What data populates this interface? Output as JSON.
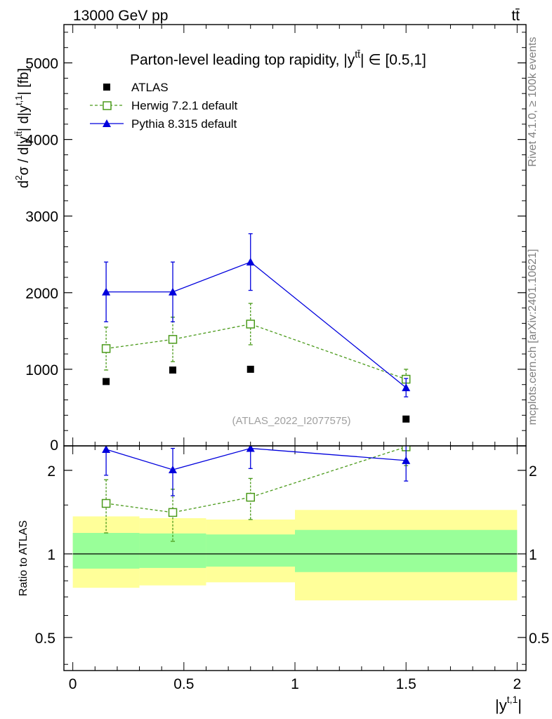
{
  "header": {
    "energy_label": "13000 GeV pp",
    "process_label": "tt̄"
  },
  "side_labels": {
    "rivet": "Rivet 4.1.0, ≥ 100k events",
    "mcplots": "mcplots.cern.ch [arXiv:2401.10621]"
  },
  "colors": {
    "atlas": "#000000",
    "herwig": "#4a9a1a",
    "pythia": "#0000dd",
    "band_inner": "#99ff99",
    "band_outer": "#ffff99"
  },
  "chart_data": [
    {
      "type": "scatter",
      "panel": "main",
      "title": "Parton-level leading top rapidity, |y^{tt̄}| ∈ [0.5,1]",
      "title_parts": {
        "prefix": "Parton-level leading top rapidity, |y",
        "sup": "tt̄",
        "suffix": "| ∈ [0.5,1]"
      },
      "ylabel": "d²σ / d|y^{tt̄}| d|y^{t,1}| [fb]",
      "ylabel_parts": {
        "a": "d",
        "a_sup": "2",
        "b": "σ / d|y",
        "b_sup": "tt̄",
        "c": "| d|y",
        "c_sup": "t,1",
        "d": "| [fb]"
      },
      "ylim": [
        0,
        5500
      ],
      "yticks": [
        0,
        1000,
        2000,
        3000,
        4000,
        5000
      ],
      "ytick_labels": [
        "0",
        "1000",
        "2000",
        "3000",
        "4000",
        "5000"
      ],
      "xlim": [
        -0.04,
        2.04
      ],
      "annotation": "(ATLAS_2022_I2077575)",
      "legend_position": "top-left",
      "series": [
        {
          "name": "ATLAS",
          "x": [
            0.15,
            0.45,
            0.8,
            1.5
          ],
          "y": [
            840,
            990,
            1000,
            350
          ],
          "err": [
            0,
            0,
            0,
            0
          ],
          "marker": "filled-square",
          "line": "none"
        },
        {
          "name": "Herwig 7.2.1 default",
          "x": [
            0.15,
            0.45,
            0.8,
            1.5
          ],
          "y": [
            1270,
            1390,
            1590,
            870
          ],
          "err": [
            280,
            290,
            270,
            130
          ],
          "marker": "open-square",
          "line": "dashed"
        },
        {
          "name": "Pythia 8.315 default",
          "x": [
            0.15,
            0.45,
            0.8,
            1.5
          ],
          "y": [
            2010,
            2010,
            2400,
            760
          ],
          "err": [
            390,
            390,
            370,
            120
          ],
          "marker": "filled-triangle",
          "line": "solid"
        }
      ]
    },
    {
      "type": "scatter",
      "panel": "ratio",
      "ylabel": "Ratio to ATLAS",
      "yscale": "log",
      "ylim": [
        0.38,
        2.45
      ],
      "yticks": [
        0.5,
        1,
        2
      ],
      "ytick_labels": [
        "0.5",
        "1",
        "2"
      ],
      "xlim": [
        -0.04,
        2.04
      ],
      "xticks": [
        0,
        0.5,
        1,
        1.5,
        2
      ],
      "xtick_labels": [
        "0",
        "0.5",
        "1",
        "1.5",
        "2"
      ],
      "xlabel": "|y^{t,1}|",
      "xlabel_parts": {
        "a": "|y",
        "a_sup": "t,1",
        "b": "|"
      },
      "reference_line": 1,
      "bands": [
        {
          "xlow": 0.0,
          "xhigh": 0.3,
          "inner": [
            0.885,
            1.19
          ],
          "outer": [
            0.755,
            1.365
          ]
        },
        {
          "xlow": 0.3,
          "xhigh": 0.6,
          "inner": [
            0.89,
            1.185
          ],
          "outer": [
            0.77,
            1.345
          ]
        },
        {
          "xlow": 0.6,
          "xhigh": 1.0,
          "inner": [
            0.9,
            1.175
          ],
          "outer": [
            0.79,
            1.33
          ]
        },
        {
          "xlow": 1.0,
          "xhigh": 2.0,
          "inner": [
            0.86,
            1.22
          ],
          "outer": [
            0.68,
            1.44
          ]
        }
      ],
      "series": [
        {
          "name": "Herwig 7.2.1 default",
          "x": [
            0.15,
            0.45,
            0.8,
            1.5
          ],
          "y": [
            1.52,
            1.41,
            1.6,
            2.43
          ],
          "err": [
            0.33,
            0.3,
            0.27,
            0.35
          ],
          "marker": "open-square",
          "line": "dashed"
        },
        {
          "name": "Pythia 8.315 default",
          "x": [
            0.15,
            0.45,
            0.8,
            1.5
          ],
          "y": [
            2.38,
            2.01,
            2.4,
            2.17
          ],
          "err": [
            0.46,
            0.39,
            0.37,
            0.34
          ],
          "marker": "filled-triangle",
          "line": "solid"
        }
      ]
    }
  ]
}
